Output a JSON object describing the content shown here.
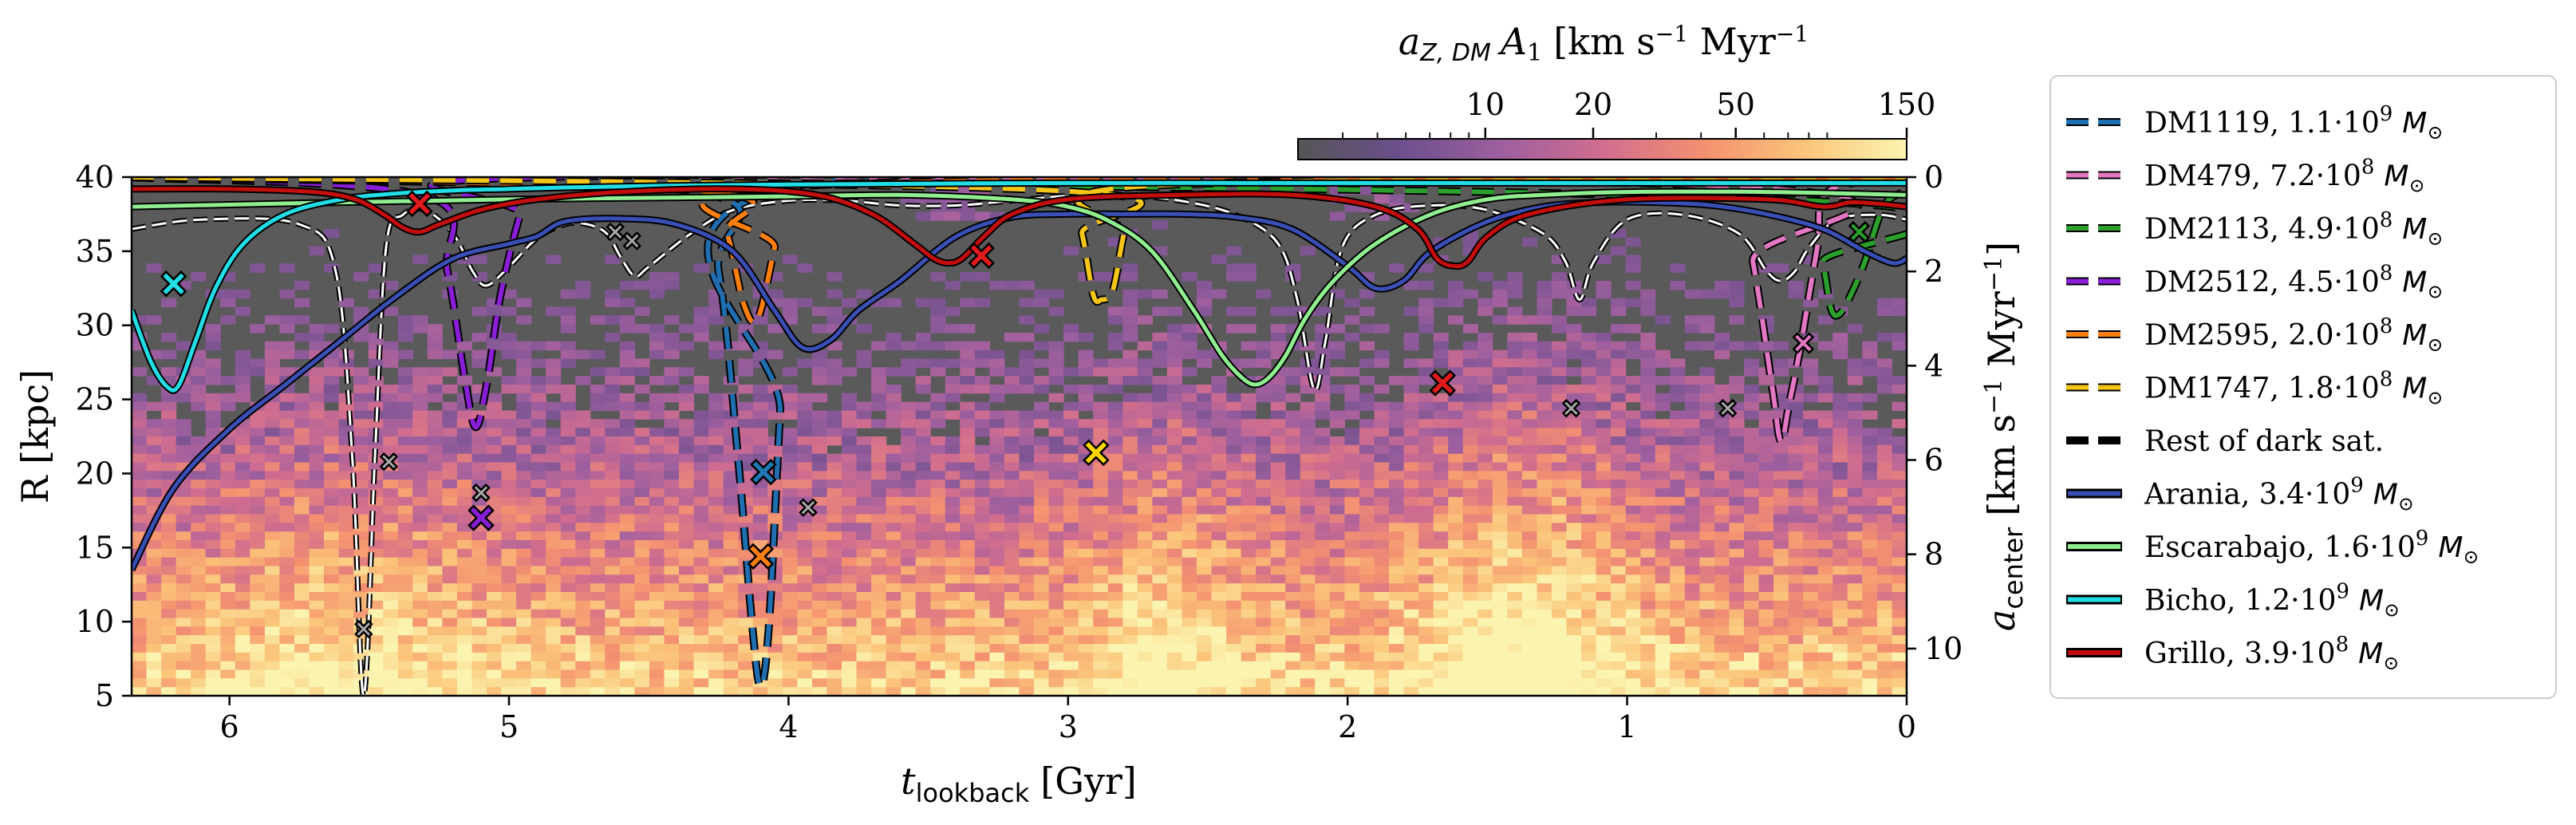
{
  "chart_data": {
    "type": "line",
    "title": "",
    "xlabel": "t_lookback [Gyr]",
    "xlabel_main": "t",
    "xlabel_sub": "lookback",
    "xlabel_unit": "[Gyr]",
    "ylabel": "R [kpc]",
    "ylabel_right": "a_center [km s^-1 Myr^-1]",
    "ylabel_right_main": "a",
    "ylabel_right_sub": "center",
    "ylabel_right_unit": "[km s",
    "ylabel_right_unit_exp": "−1",
    "ylabel_right_unit_end": " Myr",
    "ylabel_right_unit_exp2": "−1",
    "ylabel_right_unit_close": "]",
    "xlim": [
      6.35,
      0
    ],
    "ylim": [
      5,
      40
    ],
    "ylim_right": [
      11,
      0
    ],
    "x_ticks": [
      "6",
      "5",
      "4",
      "3",
      "2",
      "1",
      "0"
    ],
    "y_ticks": [
      "5",
      "10",
      "15",
      "20",
      "25",
      "30",
      "35",
      "40"
    ],
    "y_right_ticks": [
      "0",
      "2",
      "4",
      "6",
      "8",
      "10"
    ],
    "colorbar": {
      "label": "a_Z,DM A_1 [km s^-1 Myr^-1]",
      "label_main": "a",
      "label_sub": "Z, DM",
      "label_A": "A",
      "label_A_sub": "1",
      "label_unit": "[km s",
      "label_unit_exp": "−1",
      "label_unit_end": " Myr",
      "label_unit_exp2": "−1",
      "label_unit_close": "]",
      "scale": "log",
      "range": [
        3,
        150
      ],
      "ticks": [
        "10",
        "20",
        "50",
        "150"
      ],
      "cmap": [
        "#555555",
        "#6b4f8c",
        "#9e5f9f",
        "#d06d8f",
        "#f49070",
        "#fbc57a",
        "#fbf4b0"
      ]
    },
    "series": [
      {
        "name": "DM1119",
        "label": "DM1119, 1.1·10",
        "exp": "9",
        "color": "#1f6fb0",
        "style": "dashed",
        "x": [
          6.35,
          4.35,
          4.25,
          4.18,
          4.13,
          4.1,
          4.07,
          4.03,
          3.98,
          0
        ],
        "a": [
          0,
          0.3,
          2,
          6,
          9.5,
          10.8,
          9.5,
          5,
          0.2,
          0
        ]
      },
      {
        "name": "DM479",
        "label": "DM479, 7.2·10",
        "exp": "8",
        "color": "#e377c2",
        "style": "dashed",
        "x": [
          6.35,
          0.62,
          0.55,
          0.48,
          0.45,
          0.42,
          0.38,
          0.32,
          0.28,
          0
        ],
        "a": [
          0,
          0.2,
          1.8,
          4.5,
          5.6,
          4.8,
          3.6,
          1.5,
          0.3,
          0
        ]
      },
      {
        "name": "DM2113",
        "label": "DM2113, 4.9·10",
        "exp": "8",
        "color": "#2ca02c",
        "style": "dashed",
        "x": [
          6.35,
          0.35,
          0.3,
          0.27,
          0.24,
          0.2,
          0.15,
          0.08,
          0
        ],
        "a": [
          0,
          0.5,
          1.8,
          2.8,
          2.9,
          2.5,
          1.8,
          0.6,
          0.3
        ]
      },
      {
        "name": "DM2512",
        "label": "DM2512, 4.5·10",
        "exp": "8",
        "color": "#8a1ed8",
        "style": "dashed",
        "x": [
          6.35,
          5.3,
          5.22,
          5.16,
          5.12,
          5.08,
          5.03,
          4.96,
          4.9,
          0
        ],
        "a": [
          0,
          0.4,
          2,
          4.2,
          5.3,
          4.4,
          2.5,
          0.8,
          0,
          0
        ]
      },
      {
        "name": "DM2595",
        "label": "DM2595, 2.0·10",
        "exp": "8",
        "color": "#ff7f0e",
        "style": "dashed",
        "x": [
          6.35,
          4.3,
          4.22,
          4.16,
          4.11,
          4.05,
          4.0,
          0
        ],
        "a": [
          0,
          0.3,
          1.2,
          2.7,
          3.0,
          1.5,
          0.2,
          0
        ]
      },
      {
        "name": "DM1747",
        "label": "DM1747, 1.8·10",
        "exp": "8",
        "color": "#f5c518",
        "style": "dashed",
        "x": [
          6.35,
          3.0,
          2.95,
          2.91,
          2.88,
          2.84,
          2.8,
          2.75,
          0
        ],
        "a": [
          0,
          0.3,
          1.2,
          2.5,
          2.6,
          2.4,
          1.2,
          0.2,
          0
        ]
      },
      {
        "name": "Rest of dark sat.",
        "label": "Rest of dark sat.",
        "exp": "",
        "color": "#000000",
        "style": "dashed",
        "x": [
          6.35,
          6.1,
          5.75,
          5.62,
          5.56,
          5.52,
          5.48,
          5.44,
          5.38,
          5.3,
          5.2,
          5.13,
          5.08,
          5.0,
          4.9,
          4.8,
          4.72,
          4.65,
          4.6,
          4.55,
          4.5,
          4.35,
          4.2,
          4.0,
          3.8,
          3.6,
          3.4,
          3.2,
          3.0,
          2.8,
          2.6,
          2.4,
          2.25,
          2.18,
          2.12,
          2.08,
          2.02,
          1.9,
          1.7,
          1.5,
          1.3,
          1.22,
          1.17,
          1.12,
          1.0,
          0.8,
          0.6,
          0.5,
          0.45,
          0.4,
          0.35,
          0.25,
          0.1,
          0
        ],
        "a": [
          1.1,
          0.9,
          1.0,
          2,
          6,
          11,
          6,
          1.5,
          0.8,
          0.7,
          1.2,
          2,
          2.3,
          1.9,
          1.3,
          1.0,
          1.0,
          1.2,
          1.7,
          2.1,
          1.9,
          1.2,
          0.7,
          0.5,
          0.5,
          0.6,
          0.6,
          0.5,
          0.4,
          0.4,
          0.5,
          0.8,
          1.4,
          2.6,
          4.5,
          3.5,
          1.5,
          0.8,
          0.6,
          0.7,
          1.2,
          1.8,
          2.6,
          1.8,
          0.9,
          0.8,
          1.2,
          2.0,
          2.2,
          2.0,
          1.5,
          0.9,
          0.8,
          0.9
        ]
      },
      {
        "name": "Arania",
        "label": "Arania, 3.4·10",
        "exp": "9",
        "color": "#3a4fb5",
        "style": "solid",
        "x": [
          6.35,
          6.2,
          6.0,
          5.8,
          5.6,
          5.4,
          5.2,
          5.0,
          4.9,
          4.8,
          4.6,
          4.4,
          4.2,
          4.05,
          3.95,
          3.85,
          3.75,
          3.6,
          3.4,
          3.2,
          3.0,
          2.8,
          2.6,
          2.4,
          2.2,
          2.0,
          1.9,
          1.8,
          1.7,
          1.5,
          1.3,
          1.1,
          0.9,
          0.7,
          0.5,
          0.3,
          0.15,
          0.05,
          0
        ],
        "r": [
          13.5,
          19,
          23,
          26,
          29,
          32,
          34.5,
          35.5,
          36,
          37,
          37.2,
          36.8,
          35,
          31,
          28.5,
          29,
          31,
          33,
          36,
          37.3,
          37.5,
          37.5,
          37.5,
          37.3,
          36.5,
          34,
          32.5,
          33,
          35,
          37,
          38,
          38.3,
          38.3,
          38.1,
          37.5,
          36.5,
          35,
          34.2,
          34.5
        ]
      },
      {
        "name": "Escarabajo",
        "label": "Escarabajo, 1.6·10",
        "exp": "9",
        "color": "#90ee90",
        "style": "solid",
        "x": [
          6.35,
          5.6,
          5.0,
          4.5,
          4.0,
          3.6,
          3.2,
          3.0,
          2.85,
          2.7,
          2.55,
          2.45,
          2.38,
          2.33,
          2.28,
          2.22,
          2.15,
          2.05,
          1.9,
          1.7,
          1.5,
          1.3,
          1.0,
          0.5,
          0
        ],
        "r": [
          38,
          38.3,
          38.5,
          38.6,
          38.7,
          38.8,
          38.5,
          38,
          37,
          35,
          31,
          28,
          26.5,
          26,
          26.5,
          28,
          30.5,
          33,
          35.5,
          37.5,
          38.5,
          38.8,
          39,
          39,
          38.8
        ]
      },
      {
        "name": "Bicho",
        "label": "Bicho, 1.2·10",
        "exp": "9",
        "color": "#22dde6",
        "style": "solid",
        "x": [
          6.35,
          6.28,
          6.22,
          6.18,
          6.12,
          6.05,
          5.95,
          5.8,
          5.6,
          5.4,
          5.2,
          5.0,
          4.8,
          4.5,
          4.0,
          3.0,
          2.0,
          1.0,
          0
        ],
        "r": [
          31,
          27.5,
          25.8,
          26,
          29,
          32.5,
          35.5,
          37.5,
          38.5,
          38.9,
          39.1,
          39.2,
          39.3,
          39.4,
          39.5,
          39.6,
          39.6,
          39.6,
          39.6
        ]
      },
      {
        "name": "Grillo",
        "label": "Grillo, 3.9·10",
        "exp": "8",
        "color": "#c40d0d",
        "style": "solid",
        "x": [
          6.35,
          6.0,
          5.7,
          5.55,
          5.45,
          5.38,
          5.32,
          5.25,
          5.1,
          4.9,
          4.6,
          4.2,
          3.9,
          3.7,
          3.55,
          3.48,
          3.43,
          3.38,
          3.3,
          3.2,
          3.0,
          2.6,
          2.2,
          1.9,
          1.75,
          1.68,
          1.62,
          1.57,
          1.5,
          1.35,
          1.0,
          0.5,
          0.3,
          0.2,
          0.1,
          0
        ],
        "r": [
          39.2,
          39.2,
          39,
          38.5,
          37.5,
          36.6,
          36.3,
          36.8,
          37.8,
          38.5,
          39,
          39.2,
          38.8,
          37.5,
          35.5,
          34.5,
          34.2,
          34.5,
          36,
          37.5,
          38.5,
          38.8,
          38.8,
          38,
          36.5,
          34.5,
          34,
          34.3,
          36,
          37.5,
          38.5,
          38.5,
          38,
          38.3,
          38.2,
          38
        ]
      }
    ],
    "markers": [
      {
        "series": "Bicho",
        "t": 6.2,
        "r": 32.8,
        "color": "#22dde6",
        "size": "large"
      },
      {
        "series": "Grillo",
        "t": 5.32,
        "r": 38.2,
        "color": "#e31a1c",
        "size": "large"
      },
      {
        "series": "DM2512",
        "t": 5.1,
        "r": 17,
        "color": "#8a1ed8",
        "size": "large"
      },
      {
        "series": "DM1119",
        "t": 4.09,
        "r": 20.1,
        "color": "#1f77b4",
        "size": "large"
      },
      {
        "series": "DM2595",
        "t": 4.1,
        "r": 14.4,
        "color": "#ff7f0e",
        "size": "large"
      },
      {
        "series": "Grillo",
        "t": 3.31,
        "r": 34.7,
        "color": "#e31a1c",
        "size": "large"
      },
      {
        "series": "DM1747",
        "t": 2.9,
        "r": 21.4,
        "color": "#ffd700",
        "size": "large"
      },
      {
        "series": "Grillo",
        "t": 1.66,
        "r": 26.1,
        "color": "#e31a1c",
        "size": "large"
      },
      {
        "series": "DM479",
        "t": 0.37,
        "r": 28.8,
        "color": "#e377c2",
        "size": "medium"
      },
      {
        "series": "DM2113",
        "t": 0.17,
        "r": 36.3,
        "color": "#2ca02c",
        "size": "medium"
      },
      {
        "series": "Rest",
        "t": 5.52,
        "r": 9.5,
        "color": "#aaaaaa",
        "size": "small"
      },
      {
        "series": "Rest",
        "t": 5.43,
        "r": 20.8,
        "color": "#aaaaaa",
        "size": "small"
      },
      {
        "series": "Rest",
        "t": 5.1,
        "r": 18.7,
        "color": "#aaaaaa",
        "size": "small"
      },
      {
        "series": "Rest",
        "t": 4.62,
        "r": 36.3,
        "color": "#aaaaaa",
        "size": "small"
      },
      {
        "series": "Rest",
        "t": 4.56,
        "r": 35.7,
        "color": "#aaaaaa",
        "size": "small"
      },
      {
        "series": "Rest",
        "t": 3.93,
        "r": 17.7,
        "color": "#aaaaaa",
        "size": "small"
      },
      {
        "series": "Rest",
        "t": 1.2,
        "r": 24.4,
        "color": "#aaaaaa",
        "size": "small"
      },
      {
        "series": "Rest",
        "t": 0.64,
        "r": 24.4,
        "color": "#aaaaaa",
        "size": "small"
      }
    ],
    "legend": {
      "placement": "outside-right"
    }
  }
}
